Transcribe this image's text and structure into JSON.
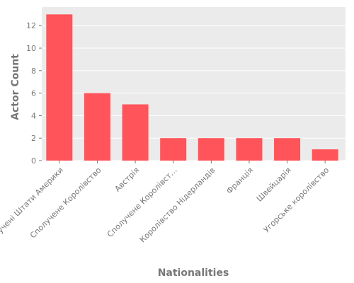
{
  "chart_data": {
    "type": "bar",
    "xlabel": "Nationalities",
    "ylabel": "Actor Count",
    "categories": [
      "Сполучені Штати Америки",
      "Сполучене Королівство",
      "Австрія",
      "Сполучене Королівст…",
      "Королівство Нідерландів",
      "Франція",
      "Швейцарія",
      "Угорське королівство"
    ],
    "values": [
      13,
      6,
      5,
      2,
      2,
      2,
      2,
      1
    ],
    "yticks": [
      0,
      2,
      4,
      6,
      8,
      10,
      12
    ],
    "ylim": [
      0,
      13.65
    ],
    "grid": true,
    "colors": {
      "bar": "#ff5459",
      "plot_background": "#ebebeb",
      "grid": "#ffffff",
      "text": "#777777"
    }
  }
}
